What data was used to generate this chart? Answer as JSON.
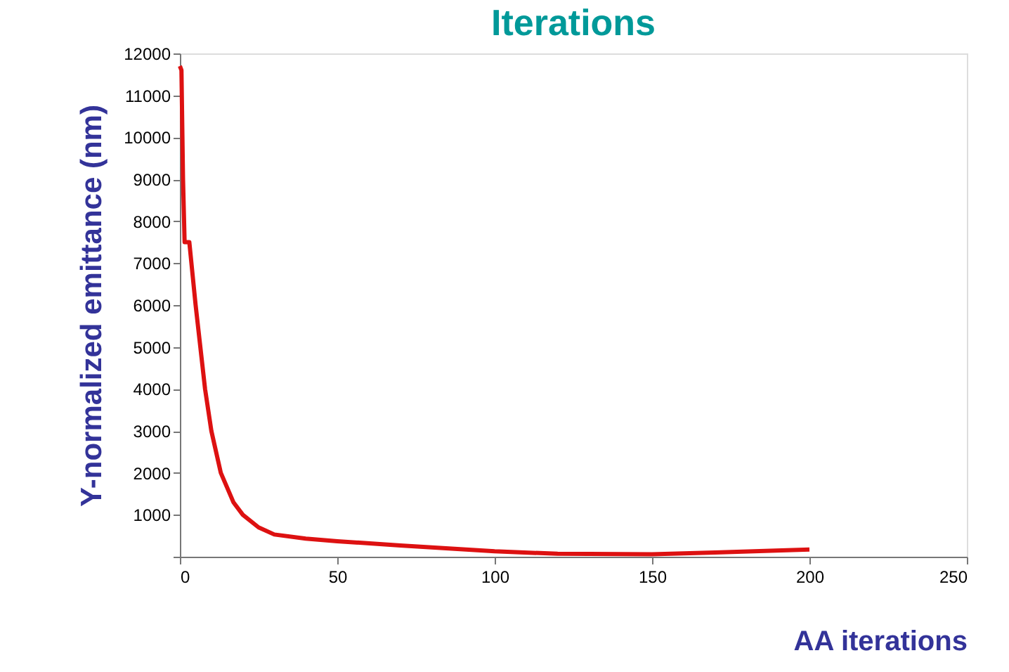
{
  "chart_data": {
    "type": "line",
    "title": "Iterations",
    "xlabel": "AA iterations",
    "ylabel": "Y-normalized emittance (nm)",
    "x": [
      0,
      0.5,
      1,
      1.5,
      3,
      5,
      8,
      10,
      13,
      17,
      20,
      25,
      30,
      40,
      50,
      70,
      100,
      120,
      150,
      170,
      200
    ],
    "series": [
      {
        "color": "#dd1111",
        "values": [
          11700,
          11600,
          9000,
          7500,
          7500,
          6000,
          4000,
          3000,
          2000,
          1300,
          1000,
          700,
          530,
          430,
          370,
          270,
          130,
          70,
          60,
          100,
          170
        ]
      }
    ],
    "xlim": [
      0,
      250
    ],
    "xticks": [
      0,
      50,
      100,
      150,
      200,
      250
    ],
    "ylim": [
      0,
      12000
    ],
    "yticks": [
      {
        "value": 0,
        "label": null
      },
      1000,
      2000,
      3000,
      4000,
      5000,
      6000,
      7000,
      8000,
      9000,
      10000,
      11000,
      12000
    ],
    "grid": false,
    "marker": "none",
    "line_style": "solid"
  }
}
